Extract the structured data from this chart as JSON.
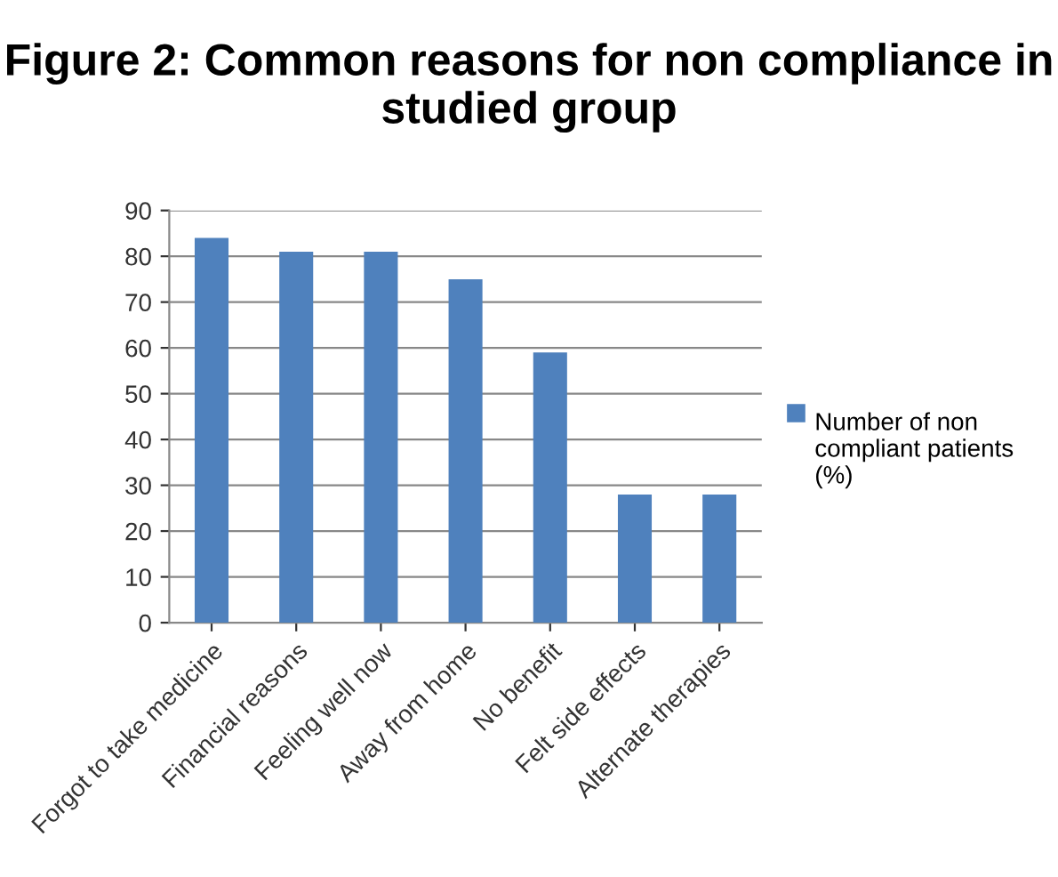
{
  "chart_data": {
    "type": "bar",
    "title": "Figure 2: Common reasons for non compliance in studied group",
    "categories": [
      "Forgot to take medicine",
      "Financial reasons",
      "Feeling well now",
      "Away from home",
      "No benefit",
      "Felt side effects",
      "Alternate therapies"
    ],
    "series": [
      {
        "name": "Number of non compliant patients (%)",
        "color": "#4f81bd",
        "values": [
          84,
          81,
          81,
          75,
          59,
          28,
          28
        ]
      }
    ],
    "ylim": [
      0,
      90
    ],
    "yticks": [
      0,
      10,
      20,
      30,
      40,
      50,
      60,
      70,
      80,
      90
    ],
    "grid": "y",
    "legend": "right"
  }
}
